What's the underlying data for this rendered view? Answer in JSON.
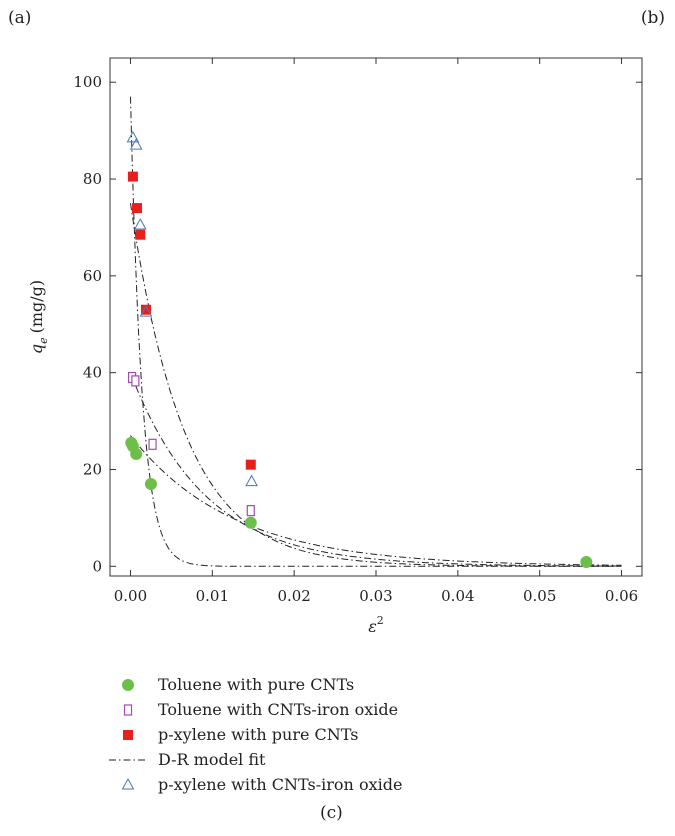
{
  "panel_labels": {
    "a": "(a)",
    "b": "(b)",
    "c": "(c)"
  },
  "colors": {
    "toluene_pure": "#6cc04a",
    "toluene_iron": "#a04cb0",
    "pxylene_pure": "#e8201c",
    "pxylene_iron": "#4a78b8",
    "fit_line": "#222222"
  },
  "chart_data": {
    "type": "scatter",
    "xlabel": "ε",
    "xlabel_superscript": "2",
    "ylabel": "q",
    "ylabel_subscript": "e",
    "ylabel_units": "(mg/g)",
    "xlim": [
      -0.0025,
      0.0625
    ],
    "ylim": [
      -2,
      105
    ],
    "x_ticks": [
      0.0,
      0.01,
      0.02,
      0.03,
      0.04,
      0.05,
      0.06
    ],
    "x_tick_labels": [
      "0.00",
      "0.01",
      "0.02",
      "0.03",
      "0.04",
      "0.05",
      "0.06"
    ],
    "y_ticks": [
      0,
      20,
      40,
      60,
      80,
      100
    ],
    "y_tick_labels": [
      "0",
      "20",
      "40",
      "60",
      "80",
      "100"
    ],
    "legend_position": "below",
    "series": [
      {
        "name": "Toluene with pure CNTs",
        "marker": "circle",
        "color_key": "toluene_pure",
        "x": [
          0.0001,
          0.0003,
          0.0007,
          0.0025,
          0.0147,
          0.0557
        ],
        "y": [
          25.5,
          24.8,
          23.2,
          17.0,
          9.0,
          0.9
        ]
      },
      {
        "name": "Toluene with CNTs-iron oxide",
        "marker": "square-open",
        "color_key": "toluene_iron",
        "x": [
          0.0002,
          0.0006,
          0.0027,
          0.0147
        ],
        "y": [
          39.0,
          38.3,
          25.2,
          11.5
        ]
      },
      {
        "name": "p-xylene with pure CNTs",
        "marker": "square-filled",
        "color_key": "pxylene_pure",
        "x": [
          0.0003,
          0.0008,
          0.0012,
          0.0019,
          0.0147
        ],
        "y": [
          80.5,
          74.0,
          68.5,
          53.0,
          21.0
        ]
      },
      {
        "name": "D-R model fit",
        "marker": "dashdot-line",
        "color_key": "fit_line",
        "x": [],
        "y": []
      },
      {
        "name": "p-xylene with CNTs-iron oxide",
        "marker": "triangle-open",
        "color_key": "pxylene_iron",
        "x": [
          0.0003,
          0.0007,
          0.0012,
          0.0019,
          0.0148
        ],
        "y": [
          88.5,
          87.0,
          70.5,
          52.5,
          17.5
        ]
      }
    ],
    "fit_curves": [
      {
        "q0": 97,
        "k": 700
      },
      {
        "q0": 75,
        "k": 150
      },
      {
        "q0": 40,
        "k": 110
      },
      {
        "q0": 27,
        "k": 80
      }
    ]
  }
}
